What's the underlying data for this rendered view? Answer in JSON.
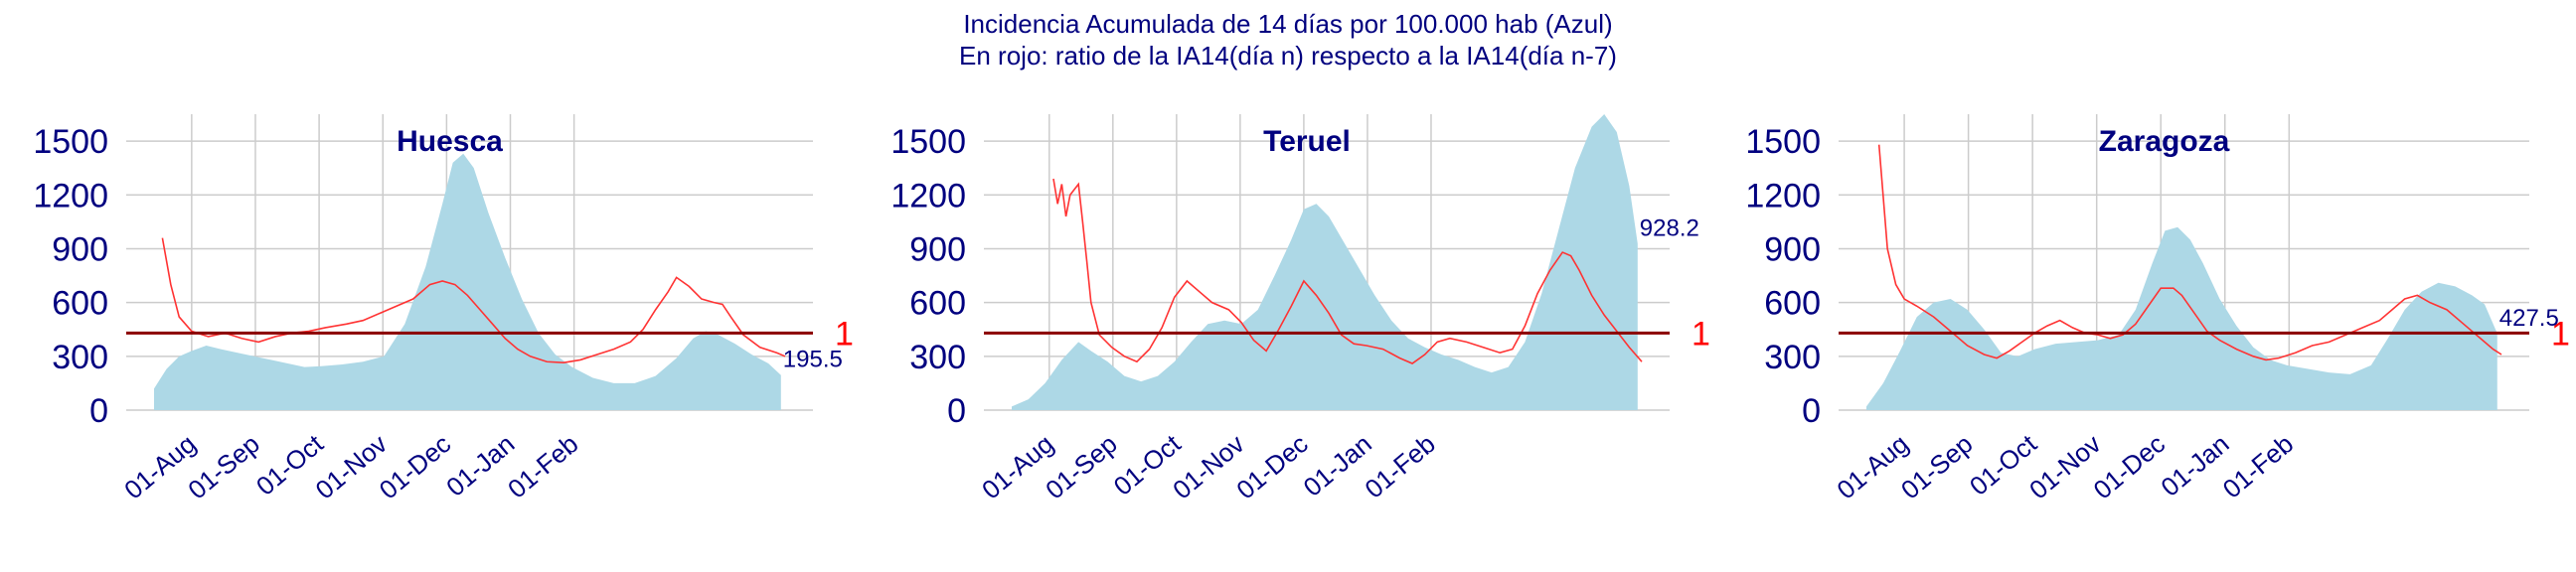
{
  "title": "Incidencia Acumulada de 14 días por 100.000 hab (Azul)",
  "subtitle": "En rojo: ratio de la IA14(día n) respecto a la IA14(día n-7)",
  "colors": {
    "area": "#add8e6",
    "ratio": "#ff3333",
    "ref": "#8b0000",
    "text": "#00007f",
    "refLabel": "#ff0000",
    "grid": "#cccccc"
  },
  "chart_data": [
    {
      "type": "area",
      "title": "Huesca",
      "x_ticks": [
        "01-Aug",
        "01-Sep",
        "01-Oct",
        "01-Nov",
        "01-Dec",
        "01-Jan",
        "01-Feb"
      ],
      "y_ticks": [
        "0",
        "300",
        "600",
        "900",
        "1200",
        "1500"
      ],
      "ylim": [
        0,
        1650
      ],
      "ref_label": "1",
      "ref_value": 430,
      "last_value_label": "195.5",
      "series": [
        {
          "values": [
            [
              0,
              120
            ],
            [
              6,
              230
            ],
            [
              12,
              300
            ],
            [
              18,
              330
            ],
            [
              25,
              360
            ],
            [
              32,
              340
            ],
            [
              40,
              320
            ],
            [
              48,
              300
            ],
            [
              56,
              280
            ],
            [
              64,
              260
            ],
            [
              72,
              240
            ],
            [
              80,
              245
            ],
            [
              90,
              255
            ],
            [
              100,
              270
            ],
            [
              110,
              300
            ],
            [
              120,
              480
            ],
            [
              130,
              800
            ],
            [
              138,
              1150
            ],
            [
              143,
              1380
            ],
            [
              148,
              1430
            ],
            [
              153,
              1350
            ],
            [
              160,
              1100
            ],
            [
              168,
              850
            ],
            [
              176,
              620
            ],
            [
              184,
              430
            ],
            [
              192,
              310
            ],
            [
              200,
              240
            ],
            [
              210,
              180
            ],
            [
              220,
              150
            ],
            [
              230,
              150
            ],
            [
              240,
              190
            ],
            [
              250,
              290
            ],
            [
              258,
              400
            ],
            [
              264,
              440
            ],
            [
              270,
              420
            ],
            [
              278,
              370
            ],
            [
              286,
              310
            ],
            [
              294,
              260
            ],
            [
              300,
              195.5
            ]
          ]
        },
        {
          "values": [
            [
              4,
              960
            ],
            [
              8,
              700
            ],
            [
              12,
              520
            ],
            [
              18,
              440
            ],
            [
              26,
              410
            ],
            [
              34,
              430
            ],
            [
              42,
              400
            ],
            [
              50,
              380
            ],
            [
              58,
              410
            ],
            [
              66,
              430
            ],
            [
              74,
              440
            ],
            [
              82,
              460
            ],
            [
              92,
              480
            ],
            [
              100,
              500
            ],
            [
              108,
              540
            ],
            [
              116,
              580
            ],
            [
              124,
              620
            ],
            [
              132,
              700
            ],
            [
              138,
              720
            ],
            [
              144,
              700
            ],
            [
              150,
              640
            ],
            [
              156,
              560
            ],
            [
              162,
              480
            ],
            [
              168,
              400
            ],
            [
              174,
              340
            ],
            [
              180,
              300
            ],
            [
              188,
              270
            ],
            [
              196,
              265
            ],
            [
              204,
              280
            ],
            [
              212,
              310
            ],
            [
              220,
              340
            ],
            [
              228,
              380
            ],
            [
              234,
              450
            ],
            [
              240,
              560
            ],
            [
              246,
              660
            ],
            [
              250,
              740
            ],
            [
              256,
              690
            ],
            [
              262,
              620
            ],
            [
              268,
              600
            ],
            [
              272,
              590
            ],
            [
              276,
              520
            ],
            [
              282,
              420
            ],
            [
              290,
              350
            ],
            [
              298,
              320
            ],
            [
              302,
              300
            ]
          ]
        }
      ]
    },
    {
      "type": "area",
      "title": "Teruel",
      "x_ticks": [
        "01-Aug",
        "01-Sep",
        "01-Oct",
        "01-Nov",
        "01-Dec",
        "01-Jan",
        "01-Feb"
      ],
      "y_ticks": [
        "0",
        "300",
        "600",
        "900",
        "1200",
        "1500"
      ],
      "ylim": [
        0,
        1650
      ],
      "ref_label": "1",
      "ref_value": 430,
      "last_value_label": "928.2",
      "series": [
        {
          "values": [
            [
              0,
              20
            ],
            [
              8,
              60
            ],
            [
              16,
              150
            ],
            [
              24,
              280
            ],
            [
              32,
              380
            ],
            [
              38,
              330
            ],
            [
              46,
              270
            ],
            [
              54,
              190
            ],
            [
              62,
              160
            ],
            [
              70,
              190
            ],
            [
              78,
              270
            ],
            [
              86,
              380
            ],
            [
              94,
              480
            ],
            [
              102,
              500
            ],
            [
              110,
              480
            ],
            [
              118,
              560
            ],
            [
              126,
              750
            ],
            [
              134,
              950
            ],
            [
              140,
              1120
            ],
            [
              146,
              1150
            ],
            [
              152,
              1080
            ],
            [
              158,
              960
            ],
            [
              166,
              800
            ],
            [
              174,
              640
            ],
            [
              182,
              500
            ],
            [
              190,
              400
            ],
            [
              198,
              350
            ],
            [
              206,
              310
            ],
            [
              214,
              280
            ],
            [
              222,
              240
            ],
            [
              230,
              210
            ],
            [
              238,
              240
            ],
            [
              246,
              380
            ],
            [
              254,
              650
            ],
            [
              262,
              1000
            ],
            [
              270,
              1350
            ],
            [
              278,
              1580
            ],
            [
              284,
              1650
            ],
            [
              290,
              1550
            ],
            [
              296,
              1250
            ],
            [
              300,
              928.2
            ]
          ]
        },
        {
          "values": [
            [
              20,
              1290
            ],
            [
              22,
              1150
            ],
            [
              24,
              1260
            ],
            [
              26,
              1080
            ],
            [
              28,
              1200
            ],
            [
              32,
              1260
            ],
            [
              34,
              1050
            ],
            [
              36,
              830
            ],
            [
              38,
              600
            ],
            [
              42,
              420
            ],
            [
              48,
              350
            ],
            [
              54,
              300
            ],
            [
              60,
              270
            ],
            [
              66,
              340
            ],
            [
              72,
              460
            ],
            [
              78,
              630
            ],
            [
              84,
              720
            ],
            [
              90,
              660
            ],
            [
              96,
              600
            ],
            [
              104,
              560
            ],
            [
              110,
              490
            ],
            [
              116,
              390
            ],
            [
              122,
              330
            ],
            [
              128,
              450
            ],
            [
              134,
              580
            ],
            [
              140,
              720
            ],
            [
              146,
              640
            ],
            [
              152,
              540
            ],
            [
              158,
              420
            ],
            [
              164,
              370
            ],
            [
              170,
              360
            ],
            [
              178,
              340
            ],
            [
              186,
              290
            ],
            [
              192,
              260
            ],
            [
              198,
              310
            ],
            [
              204,
              380
            ],
            [
              210,
              400
            ],
            [
              218,
              380
            ],
            [
              226,
              350
            ],
            [
              234,
              320
            ],
            [
              240,
              340
            ],
            [
              246,
              470
            ],
            [
              252,
              650
            ],
            [
              258,
              780
            ],
            [
              264,
              880
            ],
            [
              268,
              860
            ],
            [
              272,
              780
            ],
            [
              278,
              640
            ],
            [
              284,
              530
            ],
            [
              290,
              440
            ],
            [
              296,
              350
            ],
            [
              302,
              270
            ]
          ]
        }
      ]
    },
    {
      "type": "area",
      "title": "Zaragoza",
      "x_ticks": [
        "01-Aug",
        "01-Sep",
        "01-Oct",
        "01-Nov",
        "01-Dec",
        "01-Jan",
        "01-Feb"
      ],
      "y_ticks": [
        "0",
        "300",
        "600",
        "900",
        "1200",
        "1500"
      ],
      "ylim": [
        0,
        1650
      ],
      "ref_label": "1",
      "ref_value": 430,
      "last_value_label": "427.5",
      "series": [
        {
          "values": [
            [
              0,
              20
            ],
            [
              8,
              150
            ],
            [
              16,
              330
            ],
            [
              24,
              520
            ],
            [
              32,
              600
            ],
            [
              40,
              620
            ],
            [
              48,
              560
            ],
            [
              56,
              450
            ],
            [
              64,
              320
            ],
            [
              72,
              300
            ],
            [
              80,
              340
            ],
            [
              90,
              370
            ],
            [
              100,
              380
            ],
            [
              110,
              390
            ],
            [
              120,
              420
            ],
            [
              128,
              560
            ],
            [
              136,
              820
            ],
            [
              142,
              1000
            ],
            [
              148,
              1020
            ],
            [
              154,
              950
            ],
            [
              160,
              820
            ],
            [
              168,
              620
            ],
            [
              176,
              470
            ],
            [
              184,
              350
            ],
            [
              192,
              280
            ],
            [
              200,
              250
            ],
            [
              210,
              230
            ],
            [
              220,
              210
            ],
            [
              230,
              200
            ],
            [
              240,
              250
            ],
            [
              248,
              400
            ],
            [
              256,
              560
            ],
            [
              264,
              660
            ],
            [
              272,
              710
            ],
            [
              280,
              690
            ],
            [
              288,
              640
            ],
            [
              294,
              590
            ],
            [
              300,
              427.5
            ]
          ]
        },
        {
          "values": [
            [
              6,
              1480
            ],
            [
              10,
              900
            ],
            [
              14,
              700
            ],
            [
              18,
              620
            ],
            [
              24,
              580
            ],
            [
              32,
              520
            ],
            [
              40,
              440
            ],
            [
              48,
              360
            ],
            [
              56,
              310
            ],
            [
              62,
              290
            ],
            [
              68,
              330
            ],
            [
              74,
              380
            ],
            [
              80,
              430
            ],
            [
              86,
              470
            ],
            [
              92,
              500
            ],
            [
              98,
              460
            ],
            [
              104,
              430
            ],
            [
              110,
              420
            ],
            [
              116,
              400
            ],
            [
              122,
              420
            ],
            [
              128,
              480
            ],
            [
              134,
              580
            ],
            [
              140,
              680
            ],
            [
              146,
              680
            ],
            [
              150,
              640
            ],
            [
              156,
              540
            ],
            [
              162,
              440
            ],
            [
              168,
              390
            ],
            [
              176,
              340
            ],
            [
              184,
              300
            ],
            [
              190,
              280
            ],
            [
              196,
              290
            ],
            [
              204,
              320
            ],
            [
              212,
              360
            ],
            [
              220,
              380
            ],
            [
              228,
              420
            ],
            [
              236,
              460
            ],
            [
              244,
              500
            ],
            [
              250,
              560
            ],
            [
              256,
              620
            ],
            [
              262,
              640
            ],
            [
              268,
              600
            ],
            [
              276,
              560
            ],
            [
              284,
              480
            ],
            [
              292,
              400
            ],
            [
              298,
              340
            ],
            [
              302,
              310
            ]
          ]
        }
      ]
    }
  ]
}
